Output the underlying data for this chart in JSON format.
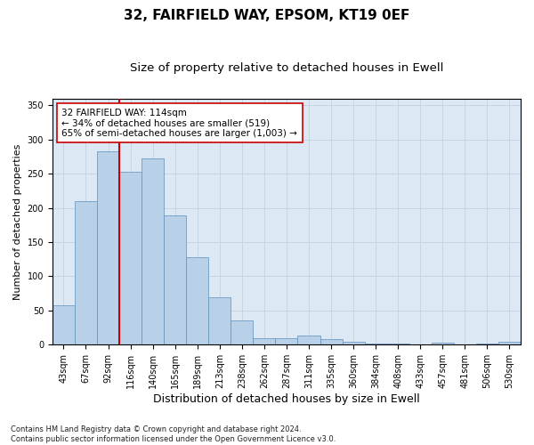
{
  "title1": "32, FAIRFIELD WAY, EPSOM, KT19 0EF",
  "title2": "Size of property relative to detached houses in Ewell",
  "xlabel": "Distribution of detached houses by size in Ewell",
  "ylabel": "Number of detached properties",
  "categories": [
    "43sqm",
    "67sqm",
    "92sqm",
    "116sqm",
    "140sqm",
    "165sqm",
    "189sqm",
    "213sqm",
    "238sqm",
    "262sqm",
    "287sqm",
    "311sqm",
    "335sqm",
    "360sqm",
    "384sqm",
    "408sqm",
    "433sqm",
    "457sqm",
    "481sqm",
    "506sqm",
    "530sqm"
  ],
  "values": [
    58,
    210,
    283,
    253,
    272,
    189,
    128,
    69,
    35,
    10,
    10,
    13,
    8,
    5,
    2,
    2,
    0,
    3,
    0,
    2,
    4
  ],
  "bar_color": "#b8d0e8",
  "bar_edge_color": "#6090b8",
  "vline_index": 2.5,
  "vline_color": "#cc0000",
  "annotation_text": "32 FAIRFIELD WAY: 114sqm\n← 34% of detached houses are smaller (519)\n65% of semi-detached houses are larger (1,003) →",
  "annotation_box_color": "#ffffff",
  "annotation_box_edge": "#cc0000",
  "ylim": [
    0,
    360
  ],
  "yticks": [
    0,
    50,
    100,
    150,
    200,
    250,
    300,
    350
  ],
  "grid_color": "#c8d4e4",
  "bg_color": "#dce8f4",
  "footnote": "Contains HM Land Registry data © Crown copyright and database right 2024.\nContains public sector information licensed under the Open Government Licence v3.0.",
  "title1_fontsize": 11,
  "title2_fontsize": 9.5,
  "xlabel_fontsize": 9,
  "ylabel_fontsize": 8,
  "tick_fontsize": 7,
  "annotation_fontsize": 7.5,
  "footnote_fontsize": 6
}
